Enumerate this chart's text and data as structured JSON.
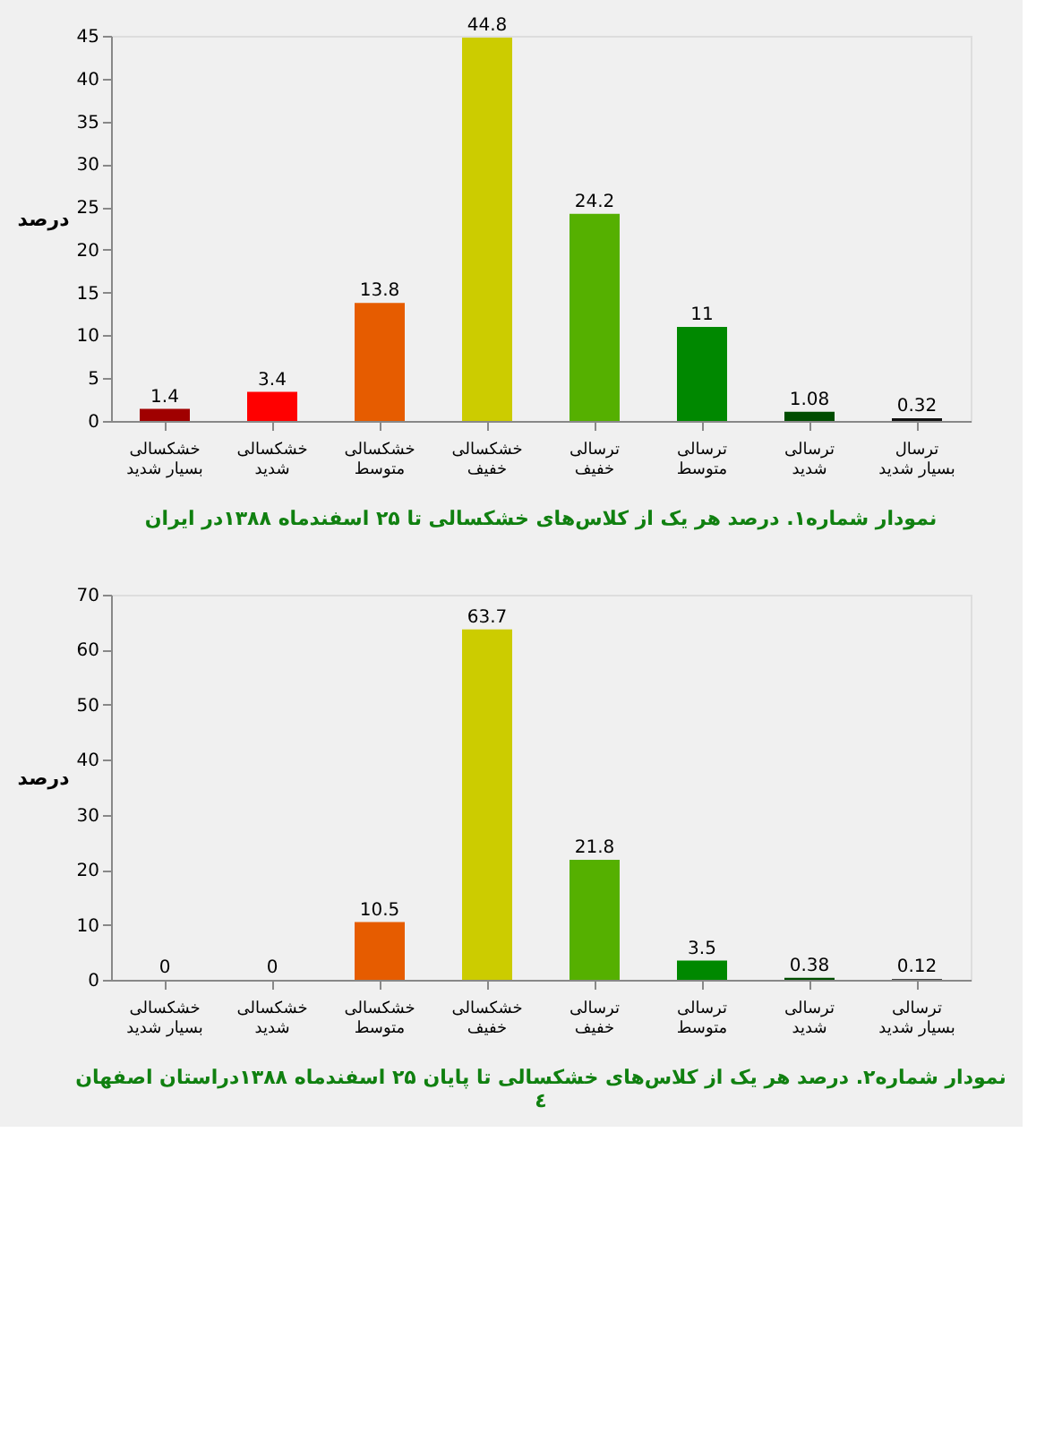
{
  "chart_data": [
    {
      "type": "bar",
      "ylabel": "درصد",
      "categories": [
        "خشکسالی بسیار شدید",
        "خشکسالی شدید",
        "خشکسالی متوسط",
        "خشکسالی خفیف",
        "ترسالی خفیف",
        "ترسالی متوسط",
        "ترسالی شدید",
        "ترسال بسیار شدید"
      ],
      "values": [
        1.4,
        3.4,
        13.8,
        44.8,
        24.2,
        11,
        1.08,
        0.32
      ],
      "colors": [
        "#a00000",
        "#ff0000",
        "#e65c00",
        "#cccc00",
        "#55b000",
        "#008800",
        "#004d00",
        "#111111"
      ],
      "ylim": [
        0,
        45
      ],
      "yticks": [
        0,
        5,
        10,
        15,
        20,
        25,
        30,
        35,
        40,
        45
      ],
      "data_labels": true,
      "grid": false,
      "annotations": [
        "نمودار شماره۱. درصد هر یک از کلاس‌های خشکسالی تا ۲۵ اسفندماه ۱۳۸۸در ایران"
      ]
    },
    {
      "type": "bar",
      "ylabel": "درصد",
      "categories": [
        "خشکسالی بسیار شدید",
        "خشکسالی شدید",
        "خشکسالی متوسط",
        "خشکسالی خفیف",
        "ترسالی خفیف",
        "ترسالی متوسط",
        "ترسالی شدید",
        "ترسالی بسیار شدید"
      ],
      "values": [
        0,
        0,
        10.5,
        63.7,
        21.8,
        3.5,
        0.38,
        0.12
      ],
      "colors": [
        "#a00000",
        "#ff0000",
        "#e65c00",
        "#cccc00",
        "#55b000",
        "#008800",
        "#004d00",
        "#111111"
      ],
      "ylim": [
        0,
        70
      ],
      "yticks": [
        0,
        10,
        20,
        30,
        40,
        50,
        60,
        70
      ],
      "data_labels": true,
      "grid": false,
      "annotations": [
        "نمودار شماره۲. درصد هر یک از کلاس‌های خشکسالی تا پایان ۲۵ اسفندماه ۱۳۸۸دراستان اصفهان",
        "٤"
      ]
    }
  ]
}
